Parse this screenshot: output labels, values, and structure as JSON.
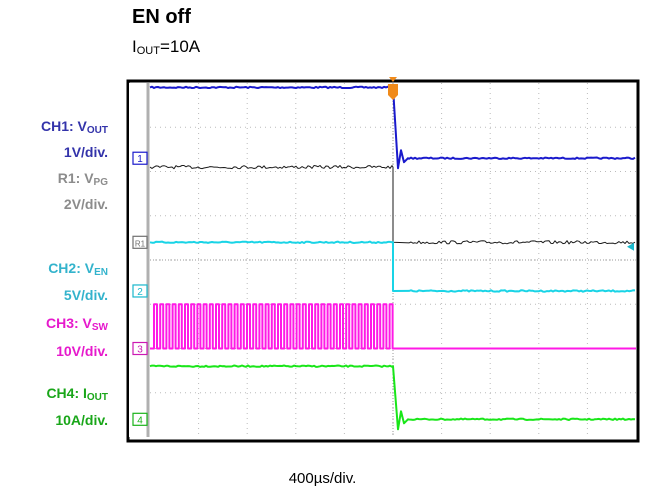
{
  "title": "EN off",
  "subtitle": {
    "prefix": "I",
    "sub": "OUT",
    "suffix": "=10A"
  },
  "channel_labels": [
    {
      "prefix": "CH1: V",
      "sub": "OUT",
      "color": "#3333aa"
    },
    {
      "text": "1V/div.",
      "color": "#3333aa"
    },
    {
      "prefix": "R1: V",
      "sub": "PG",
      "color": "#8c8c8c"
    },
    {
      "text": "2V/div.",
      "color": "#8c8c8c"
    },
    {
      "prefix": "CH2: V",
      "sub": "EN",
      "color": "#33b3cc"
    },
    {
      "text": "5V/div.",
      "color": "#33b3cc"
    },
    {
      "prefix": "CH3: V",
      "sub": "SW",
      "color": "#e619cc"
    },
    {
      "text": "10V/div.",
      "color": "#e619cc"
    },
    {
      "prefix": "CH4: I",
      "sub": "OUT",
      "color": "#19a619"
    },
    {
      "text": "10A/div.",
      "color": "#19a619"
    }
  ],
  "timebase": "400µs/div.",
  "chart_data": {
    "type": "line",
    "x_unit": "div",
    "y_unit": "div",
    "xlim": [
      0,
      10
    ],
    "ylim": [
      -4,
      4
    ],
    "grid": true,
    "trigger_x": 5.0,
    "series": [
      {
        "name": "CH1: VOUT",
        "marker": "1",
        "color": "#1a1acc",
        "marker_color": "#1a1acc",
        "ground": 2.3,
        "before": 3.9,
        "after": 2.3,
        "edge_x": 5.0
      },
      {
        "name": "R1: VPG",
        "marker": "R1",
        "color": "#1a1a1a",
        "marker_color": "#707070",
        "ground": 0.4,
        "before": 2.1,
        "after": 0.4,
        "edge_x": 5.0
      },
      {
        "name": "CH2: VEN",
        "marker": "2",
        "color": "#19d4e6",
        "marker_color": "#19b8cc",
        "ground": -0.7,
        "before": 0.4,
        "after": -0.7,
        "edge_x": 5.0
      },
      {
        "name": "CH3: VSW",
        "marker": "3",
        "color": "#ff19e6",
        "marker_color": "#cc19b3",
        "ground": -2.0,
        "switching_low": -2.0,
        "switching_high": -1.0,
        "after": -2.0,
        "edge_x": 5.0
      },
      {
        "name": "CH4: IOUT",
        "marker": "4",
        "color": "#19e619",
        "marker_color": "#19b319",
        "ground": -3.6,
        "before": -2.4,
        "after": -3.6,
        "edge_x": 5.0
      }
    ]
  }
}
